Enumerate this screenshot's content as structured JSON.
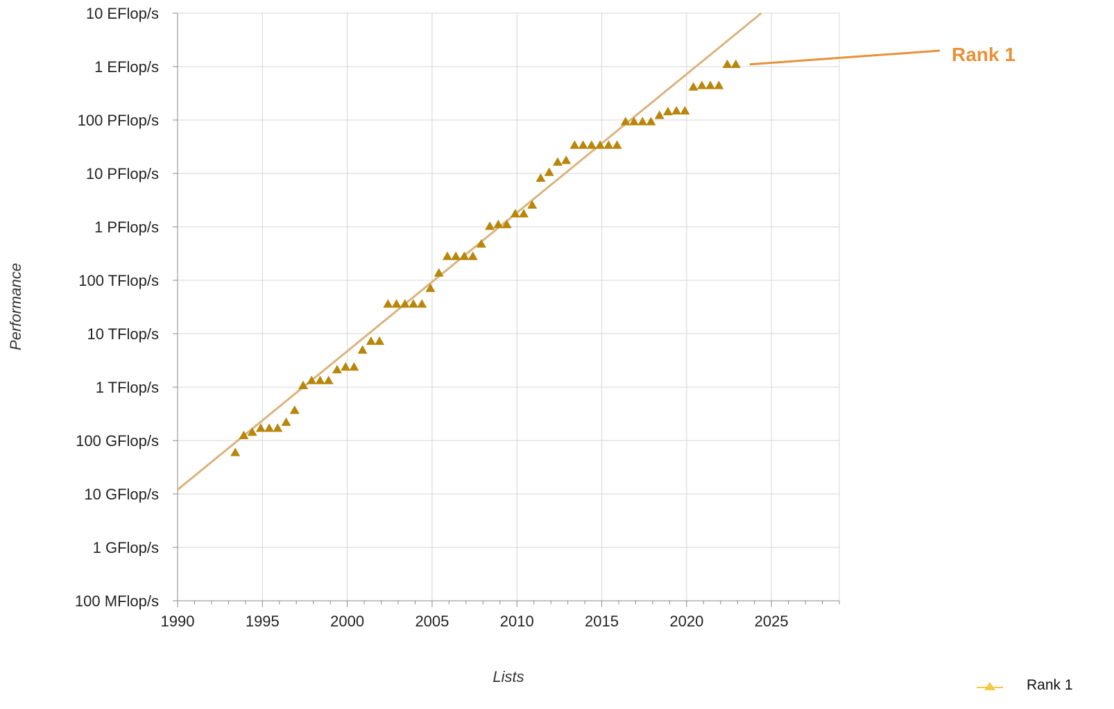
{
  "chart_data": {
    "type": "scatter",
    "title": "",
    "xlabel": "Lists",
    "ylabel": "Performance",
    "x_scale": "linear",
    "y_scale": "log",
    "xlim": [
      1990,
      2029
    ],
    "ylim_flops": [
      100000000.0,
      1e+19
    ],
    "x_ticks": [
      1990,
      1995,
      2000,
      2005,
      2010,
      2015,
      2020,
      2025
    ],
    "y_ticks": [
      {
        "label": "100 MFlop/s",
        "value": 100000000.0
      },
      {
        "label": "1 GFlop/s",
        "value": 1000000000.0
      },
      {
        "label": "10 GFlop/s",
        "value": 10000000000.0
      },
      {
        "label": "100 GFlop/s",
        "value": 100000000000.0
      },
      {
        "label": "1 TFlop/s",
        "value": 1000000000000.0
      },
      {
        "label": "10 TFlop/s",
        "value": 10000000000000.0
      },
      {
        "label": "100 TFlop/s",
        "value": 100000000000000.0
      },
      {
        "label": "1 PFlop/s",
        "value": 1000000000000000.0
      },
      {
        "label": "10 PFlop/s",
        "value": 1e+16
      },
      {
        "label": "100 PFlop/s",
        "value": 1e+17
      },
      {
        "label": "1 EFlop/s",
        "value": 1e+18
      },
      {
        "label": "10 EFlop/s",
        "value": 1e+19
      }
    ],
    "grid": true,
    "legend_position": "bottom-right",
    "series": [
      {
        "name": "Rank 1",
        "marker": "triangle",
        "color": "#B8860B",
        "points": [
          [
            1993.4,
            59700000000.0
          ],
          [
            1993.9,
            124300000000.0
          ],
          [
            1994.4,
            143400000000.0
          ],
          [
            1994.9,
            170000000000.0
          ],
          [
            1995.4,
            170000000000.0
          ],
          [
            1995.9,
            170000000000.0
          ],
          [
            1996.4,
            220000000000.0
          ],
          [
            1996.9,
            368000000000.0
          ],
          [
            1997.4,
            1070000000000.0
          ],
          [
            1997.9,
            1330000000000.0
          ],
          [
            1998.4,
            1330000000000.0
          ],
          [
            1998.9,
            1330000000000.0
          ],
          [
            1999.4,
            2120000000000.0
          ],
          [
            1999.9,
            2380000000000.0
          ],
          [
            2000.4,
            2380000000000.0
          ],
          [
            2000.9,
            4940000000000.0
          ],
          [
            2001.4,
            7230000000000.0
          ],
          [
            2001.9,
            7230000000000.0
          ],
          [
            2002.4,
            35860000000000.0
          ],
          [
            2002.9,
            35860000000000.0
          ],
          [
            2003.4,
            35860000000000.0
          ],
          [
            2003.9,
            35860000000000.0
          ],
          [
            2004.4,
            35860000000000.0
          ],
          [
            2004.9,
            70720000000000.0
          ],
          [
            2005.4,
            136700000000000.0
          ],
          [
            2005.9,
            280600000000000.0
          ],
          [
            2006.4,
            280600000000000.0
          ],
          [
            2006.9,
            280600000000000.0
          ],
          [
            2007.4,
            280600000000000.0
          ],
          [
            2007.9,
            478200000000000.0
          ],
          [
            2008.4,
            1026000000000000.0
          ],
          [
            2008.9,
            1105000000000000.0
          ],
          [
            2009.4,
            1105000000000000.0
          ],
          [
            2009.9,
            1759000000000000.0
          ],
          [
            2010.4,
            1759000000000000.0
          ],
          [
            2010.9,
            2566000000000000.0
          ],
          [
            2011.4,
            8162000000000000.0
          ],
          [
            2011.9,
            1.051e+16
          ],
          [
            2012.4,
            1.632e+16
          ],
          [
            2012.9,
            1.759e+16
          ],
          [
            2013.4,
            3.386e+16
          ],
          [
            2013.9,
            3.386e+16
          ],
          [
            2014.4,
            3.386e+16
          ],
          [
            2014.9,
            3.386e+16
          ],
          [
            2015.4,
            3.386e+16
          ],
          [
            2015.9,
            3.386e+16
          ],
          [
            2016.4,
            9.301e+16
          ],
          [
            2016.9,
            9.301e+16
          ],
          [
            2017.4,
            9.301e+16
          ],
          [
            2017.9,
            9.301e+16
          ],
          [
            2018.4,
            1.223e+17
          ],
          [
            2018.9,
            1.435e+17
          ],
          [
            2019.4,
            1.486e+17
          ],
          [
            2019.9,
            1.486e+17
          ],
          [
            2020.4,
            4.155e+17
          ],
          [
            2020.9,
            4.42e+17
          ],
          [
            2021.4,
            4.42e+17
          ],
          [
            2021.9,
            4.42e+17
          ],
          [
            2022.4,
            1.102e+18
          ],
          [
            2022.9,
            1.102e+18
          ]
        ]
      }
    ],
    "trendline": {
      "color": "#D9B47D",
      "points": [
        [
          1990,
          12000000000.0
        ],
        [
          2024.4,
          1e+19
        ]
      ]
    },
    "annotation": {
      "text": "Rank 1",
      "color": "#E69138"
    },
    "legend": [
      {
        "name": "Rank 1",
        "color": "#F4C842"
      }
    ]
  }
}
